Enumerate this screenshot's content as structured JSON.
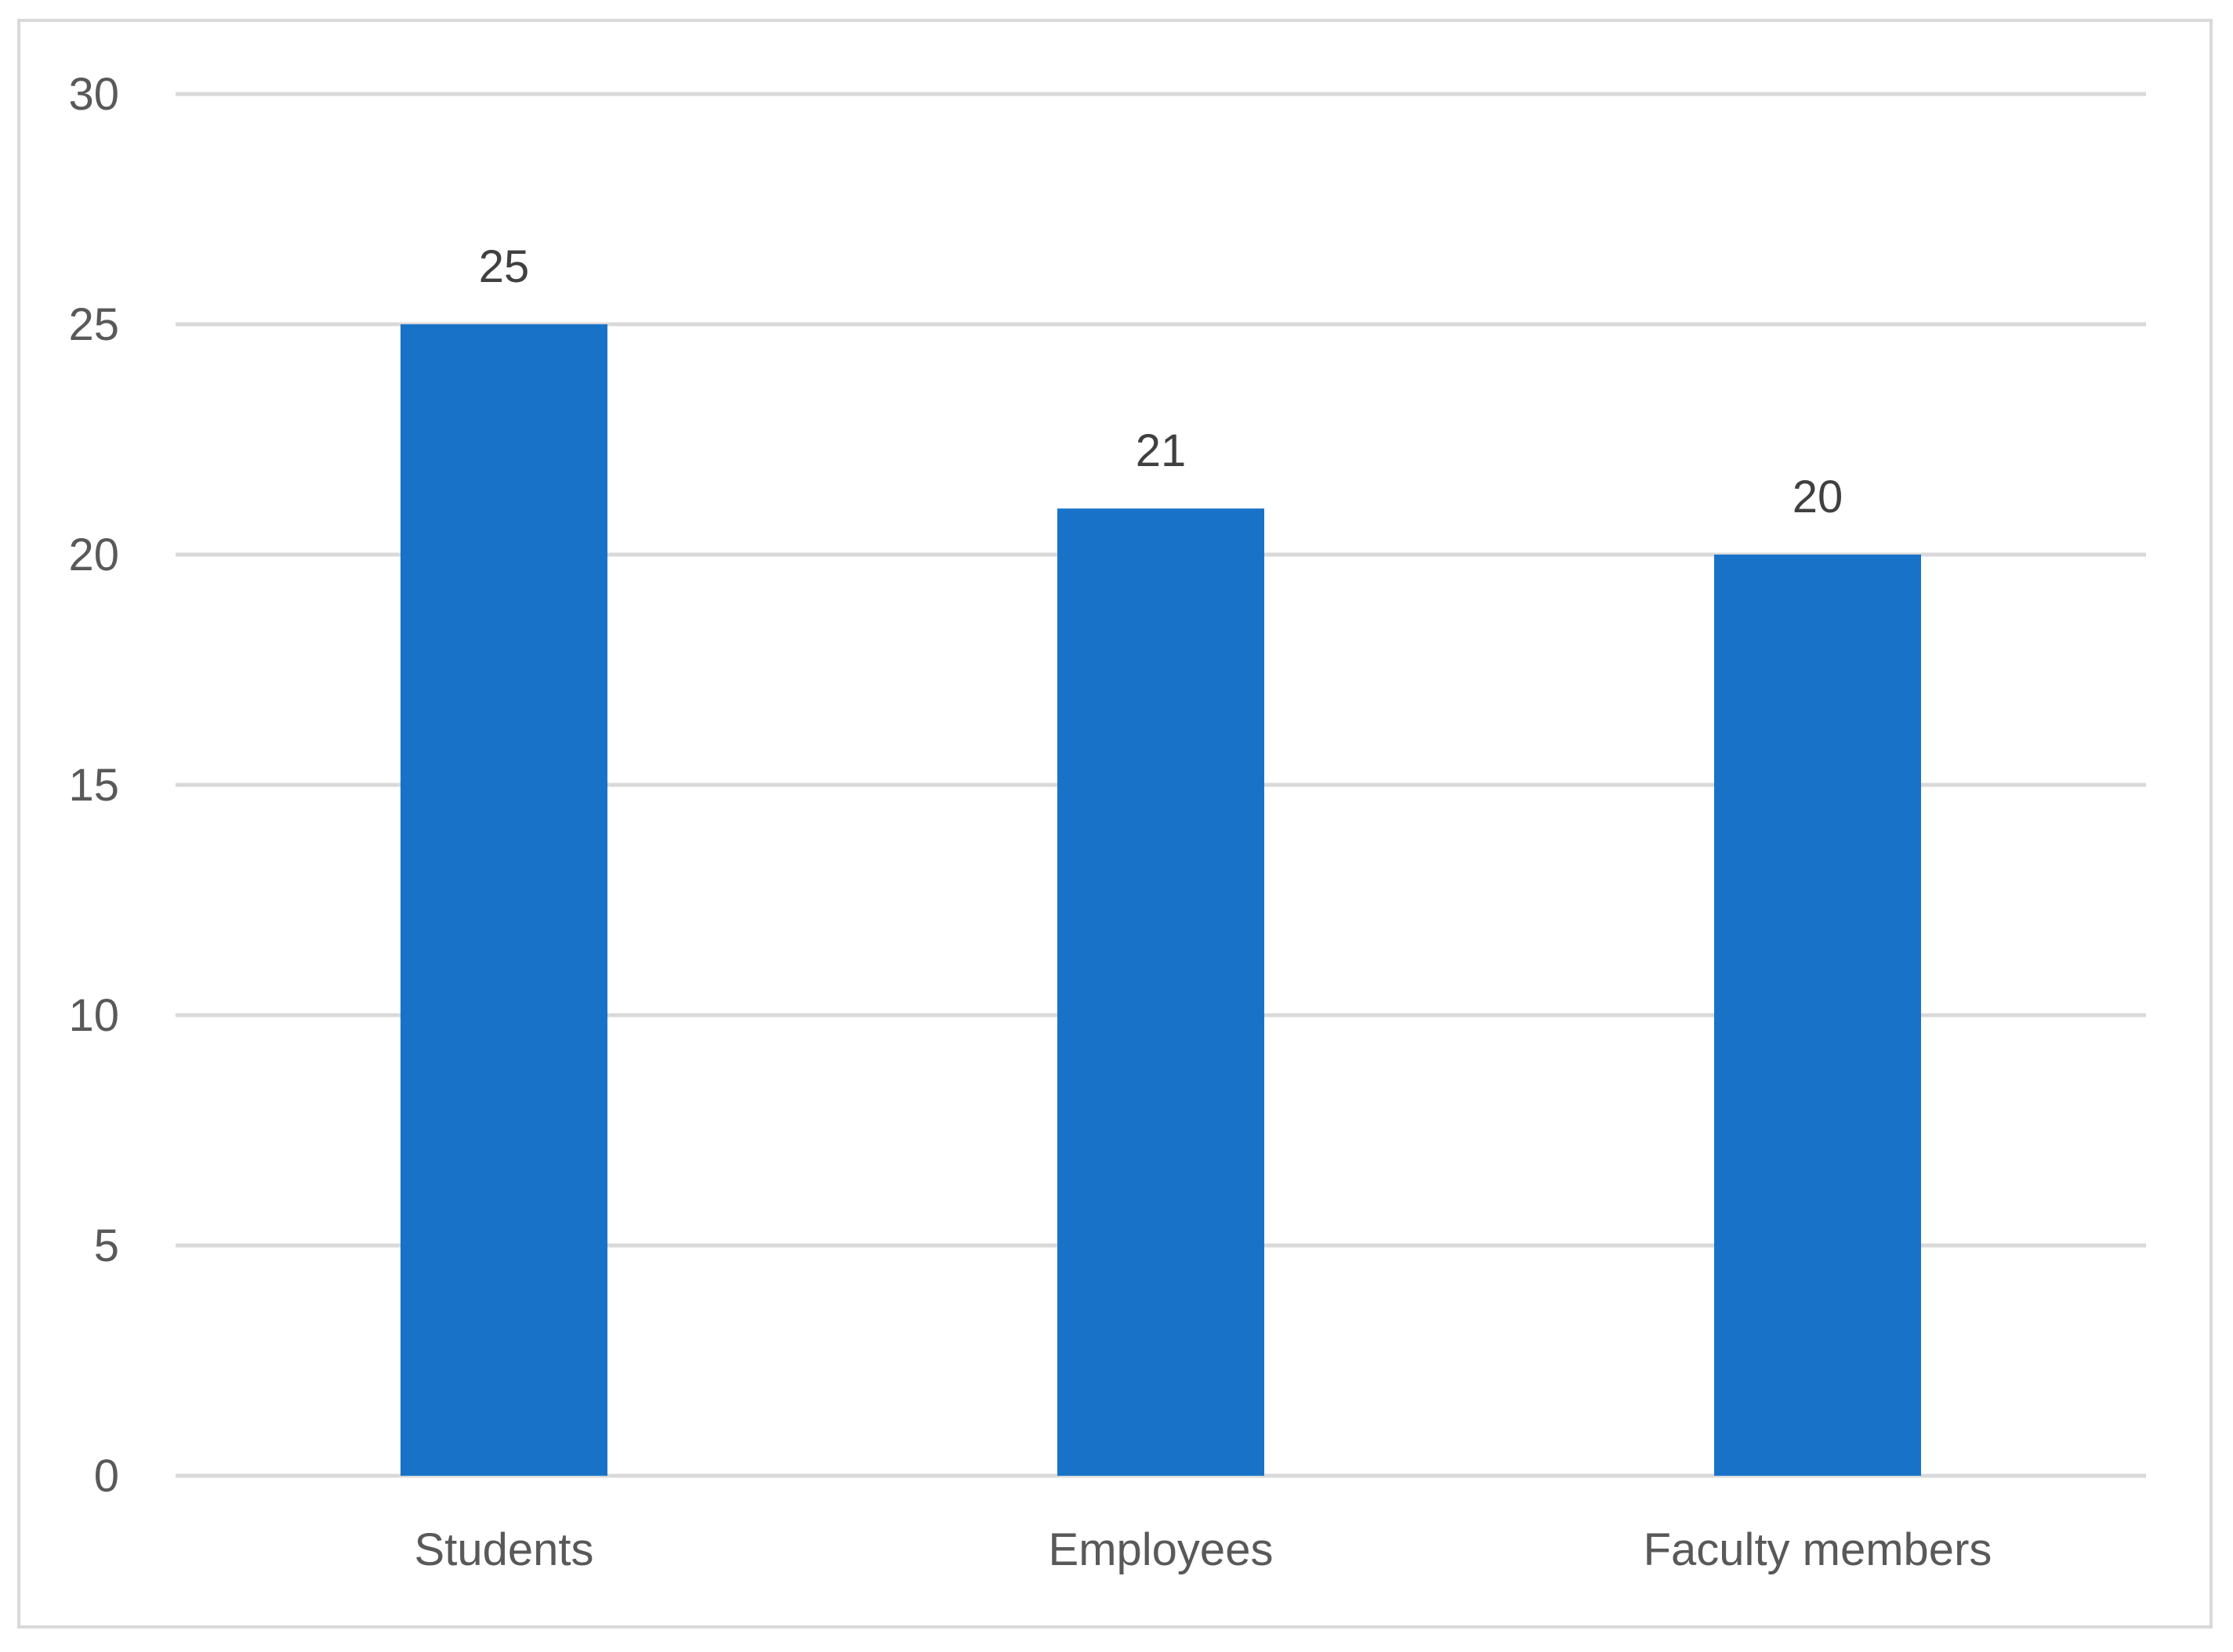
{
  "chart_data": {
    "type": "bar",
    "categories": [
      "Students",
      "Employees",
      "Faculty members"
    ],
    "series": [
      {
        "values": [
          25,
          21,
          20
        ],
        "color": "#1873c8"
      }
    ],
    "data_labels": [
      "25",
      "21",
      "20"
    ],
    "y_ticks": [
      "0",
      "5",
      "10",
      "15",
      "20",
      "25",
      "30"
    ],
    "ylim": [
      0,
      30
    ],
    "grid": true,
    "legend": "none",
    "colors": {
      "bar": "#1873c8",
      "grid": "#d9d9d9",
      "tick_text": "#595959",
      "data_label_text": "#404040",
      "frame": "#d9d9d9"
    }
  }
}
